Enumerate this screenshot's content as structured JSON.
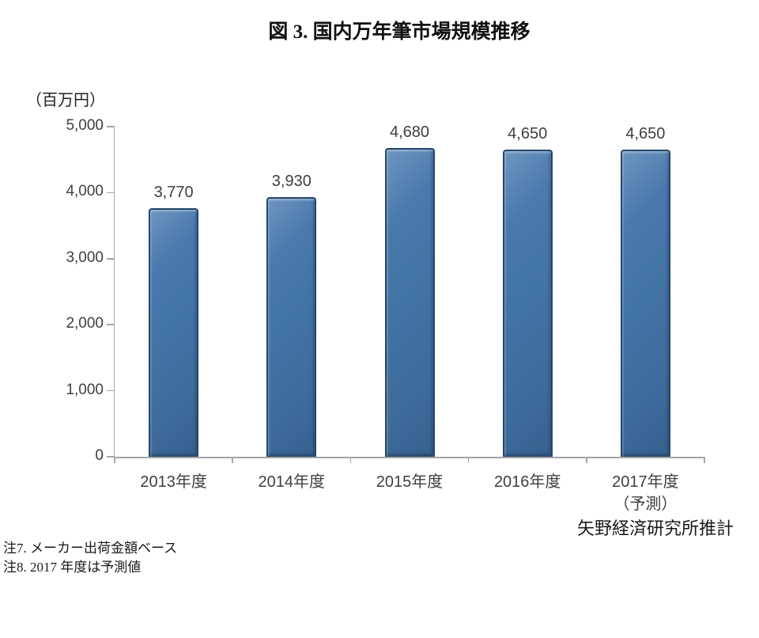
{
  "title": "図 3. 国内万年筆市場規模推移",
  "unit_label": "（百万円）",
  "source": "矢野経済研究所推計",
  "notes": {
    "note7": "注7. メーカー出荷金額ベース",
    "note8": "注8. 2017 年度は予測値"
  },
  "chart_data": {
    "type": "bar",
    "title": "図 3. 国内万年筆市場規模推移",
    "ylabel": "（百万円）",
    "xlabel": "",
    "ylim": [
      0,
      5000
    ],
    "grid": false,
    "legend": "none",
    "categories": [
      "2013年度",
      "2014年度",
      "2015年度",
      "2016年度",
      "2017年度"
    ],
    "category_sublabels": [
      "",
      "",
      "",
      "",
      "（予測）"
    ],
    "values": [
      3770,
      3930,
      4680,
      4650,
      4650
    ],
    "value_labels": [
      "3,770",
      "3,930",
      "4,680",
      "4,650",
      "4,650"
    ],
    "yticks": [
      0,
      1000,
      2000,
      3000,
      4000,
      5000
    ],
    "ytick_labels": [
      "0",
      "1,000",
      "2,000",
      "3,000",
      "4,000",
      "5,000"
    ],
    "bar_color": "#4273a5",
    "bar_border_color": "#24466c",
    "bar_highlight_color": "#6e95c0",
    "axis_color": "#a6a6a6",
    "text_color": "#3f3f3f"
  }
}
